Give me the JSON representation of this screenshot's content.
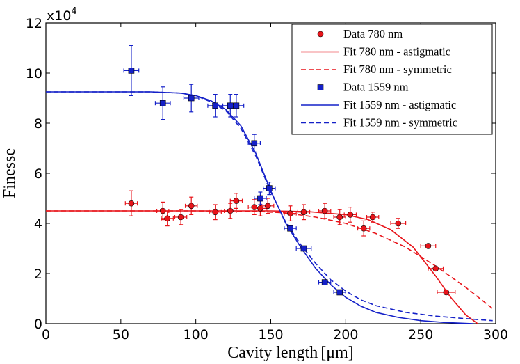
{
  "chart_data": {
    "type": "scatter",
    "xlabel": "Cavity length",
    "xlabel_unit": "[μm]",
    "ylabel": "Finesse",
    "y_multiplier_base": "x10",
    "y_multiplier_exp": "4",
    "xlim": [
      0,
      300
    ],
    "ylim": [
      0,
      12
    ],
    "x_ticks": [
      0,
      50,
      100,
      150,
      200,
      250,
      300
    ],
    "y_ticks": [
      0,
      2,
      4,
      6,
      8,
      10,
      12
    ],
    "legend_position": "top-right",
    "colors": {
      "red": "#e8141a",
      "blue": "#1420c8"
    },
    "legend": [
      {
        "label": "Data 780 nm",
        "kind": "marker-circle",
        "color": "red"
      },
      {
        "label": "Fit 780 nm - astigmatic",
        "kind": "line-solid",
        "color": "red"
      },
      {
        "label": "Fit 780 nm - symmetric",
        "kind": "line-dashed",
        "color": "red"
      },
      {
        "label": "Data 1559 nm",
        "kind": "marker-square",
        "color": "blue"
      },
      {
        "label": "Fit 1559 nm - astigmatic",
        "kind": "line-solid",
        "color": "blue"
      },
      {
        "label": "Fit 1559 nm - symmetric",
        "kind": "line-dashed",
        "color": "blue"
      }
    ],
    "series": [
      {
        "name": "Data 780 nm",
        "color": "red",
        "marker": "circle",
        "points": [
          {
            "x": 57,
            "y": 4.8,
            "xerr": 4,
            "yerr": 0.5
          },
          {
            "x": 78,
            "y": 4.5,
            "xerr": 4,
            "yerr": 0.35
          },
          {
            "x": 81,
            "y": 4.2,
            "xerr": 4,
            "yerr": 0.3
          },
          {
            "x": 90,
            "y": 4.25,
            "xerr": 4,
            "yerr": 0.3
          },
          {
            "x": 97,
            "y": 4.7,
            "xerr": 4,
            "yerr": 0.35
          },
          {
            "x": 113,
            "y": 4.45,
            "xerr": 4,
            "yerr": 0.3
          },
          {
            "x": 123,
            "y": 4.5,
            "xerr": 4,
            "yerr": 0.3
          },
          {
            "x": 127,
            "y": 4.9,
            "xerr": 4,
            "yerr": 0.3
          },
          {
            "x": 139,
            "y": 4.65,
            "xerr": 4,
            "yerr": 0.3
          },
          {
            "x": 143,
            "y": 4.6,
            "xerr": 4,
            "yerr": 0.3
          },
          {
            "x": 148,
            "y": 4.7,
            "xerr": 4,
            "yerr": 0.3
          },
          {
            "x": 163,
            "y": 4.4,
            "xerr": 4,
            "yerr": 0.3
          },
          {
            "x": 172,
            "y": 4.45,
            "xerr": 4,
            "yerr": 0.3
          },
          {
            "x": 186,
            "y": 4.5,
            "xerr": 4,
            "yerr": 0.3
          },
          {
            "x": 196,
            "y": 4.25,
            "xerr": 4,
            "yerr": 0.3
          },
          {
            "x": 203,
            "y": 4.35,
            "xerr": 4,
            "yerr": 0.3
          },
          {
            "x": 212,
            "y": 3.8,
            "xerr": 4,
            "yerr": 0.3
          },
          {
            "x": 218,
            "y": 4.25,
            "xerr": 4,
            "yerr": 0.2
          },
          {
            "x": 235,
            "y": 4.0,
            "xerr": 5,
            "yerr": 0.2
          },
          {
            "x": 255,
            "y": 3.1,
            "xerr": 5,
            "yerr": 0
          },
          {
            "x": 260,
            "y": 2.2,
            "xerr": 5,
            "yerr": 0
          },
          {
            "x": 267,
            "y": 1.25,
            "xerr": 6,
            "yerr": 0
          }
        ]
      },
      {
        "name": "Data 1559 nm",
        "color": "blue",
        "marker": "square",
        "points": [
          {
            "x": 57,
            "y": 10.1,
            "xerr": 5,
            "yerr": 1.0
          },
          {
            "x": 78,
            "y": 8.8,
            "xerr": 5,
            "yerr": 0.65
          },
          {
            "x": 97,
            "y": 9.0,
            "xerr": 5,
            "yerr": 0.55
          },
          {
            "x": 113,
            "y": 8.7,
            "xerr": 5,
            "yerr": 0.45
          },
          {
            "x": 123,
            "y": 8.7,
            "xerr": 5,
            "yerr": 0.45
          },
          {
            "x": 127,
            "y": 8.7,
            "xerr": 5,
            "yerr": 0.45
          },
          {
            "x": 139,
            "y": 7.2,
            "xerr": 4,
            "yerr": 0.35
          },
          {
            "x": 143,
            "y": 5.0,
            "xerr": 4,
            "yerr": 0.25
          },
          {
            "x": 149,
            "y": 5.4,
            "xerr": 4,
            "yerr": 0.25
          },
          {
            "x": 163,
            "y": 3.8,
            "xerr": 4,
            "yerr": 0
          },
          {
            "x": 172,
            "y": 3.0,
            "xerr": 5,
            "yerr": 0
          },
          {
            "x": 186,
            "y": 1.65,
            "xerr": 4,
            "yerr": 0
          },
          {
            "x": 196,
            "y": 1.25,
            "xerr": 4,
            "yerr": 0
          }
        ]
      }
    ],
    "fits": [
      {
        "name": "Fit 780 nm - astigmatic",
        "color": "red",
        "style": "solid",
        "x": [
          0,
          100,
          150,
          175,
          200,
          215,
          230,
          245,
          260,
          270,
          280,
          288
        ],
        "y": [
          4.5,
          4.5,
          4.5,
          4.47,
          4.35,
          4.15,
          3.75,
          3.05,
          1.9,
          1.05,
          0.35,
          0.0
        ]
      },
      {
        "name": "Fit 780 nm - symmetric",
        "color": "red",
        "style": "dashed",
        "x": [
          0,
          100,
          140,
          160,
          180,
          200,
          220,
          240,
          260,
          280,
          298
        ],
        "y": [
          4.5,
          4.5,
          4.48,
          4.42,
          4.25,
          4.0,
          3.6,
          3.05,
          2.3,
          1.45,
          0.6
        ]
      },
      {
        "name": "Fit 1559 nm - astigmatic",
        "color": "blue",
        "style": "solid",
        "x": [
          0,
          70,
          90,
          100,
          110,
          120,
          130,
          140,
          150,
          160,
          170,
          180,
          190,
          200,
          210,
          220,
          235,
          250,
          265,
          285
        ],
        "y": [
          9.25,
          9.25,
          9.2,
          9.1,
          8.9,
          8.55,
          7.9,
          6.8,
          5.3,
          4.0,
          3.05,
          2.2,
          1.55,
          1.05,
          0.7,
          0.45,
          0.25,
          0.12,
          0.05,
          0.0
        ]
      },
      {
        "name": "Fit 1559 nm - symmetric",
        "color": "blue",
        "style": "dashed",
        "x": [
          0,
          70,
          90,
          100,
          110,
          120,
          130,
          140,
          150,
          160,
          170,
          180,
          190,
          200,
          210,
          220,
          240,
          260,
          280,
          298
        ],
        "y": [
          9.25,
          9.25,
          9.2,
          9.1,
          8.85,
          8.5,
          7.8,
          6.7,
          5.25,
          4.05,
          3.15,
          2.4,
          1.75,
          1.3,
          0.95,
          0.72,
          0.45,
          0.3,
          0.2,
          0.12
        ]
      }
    ]
  }
}
